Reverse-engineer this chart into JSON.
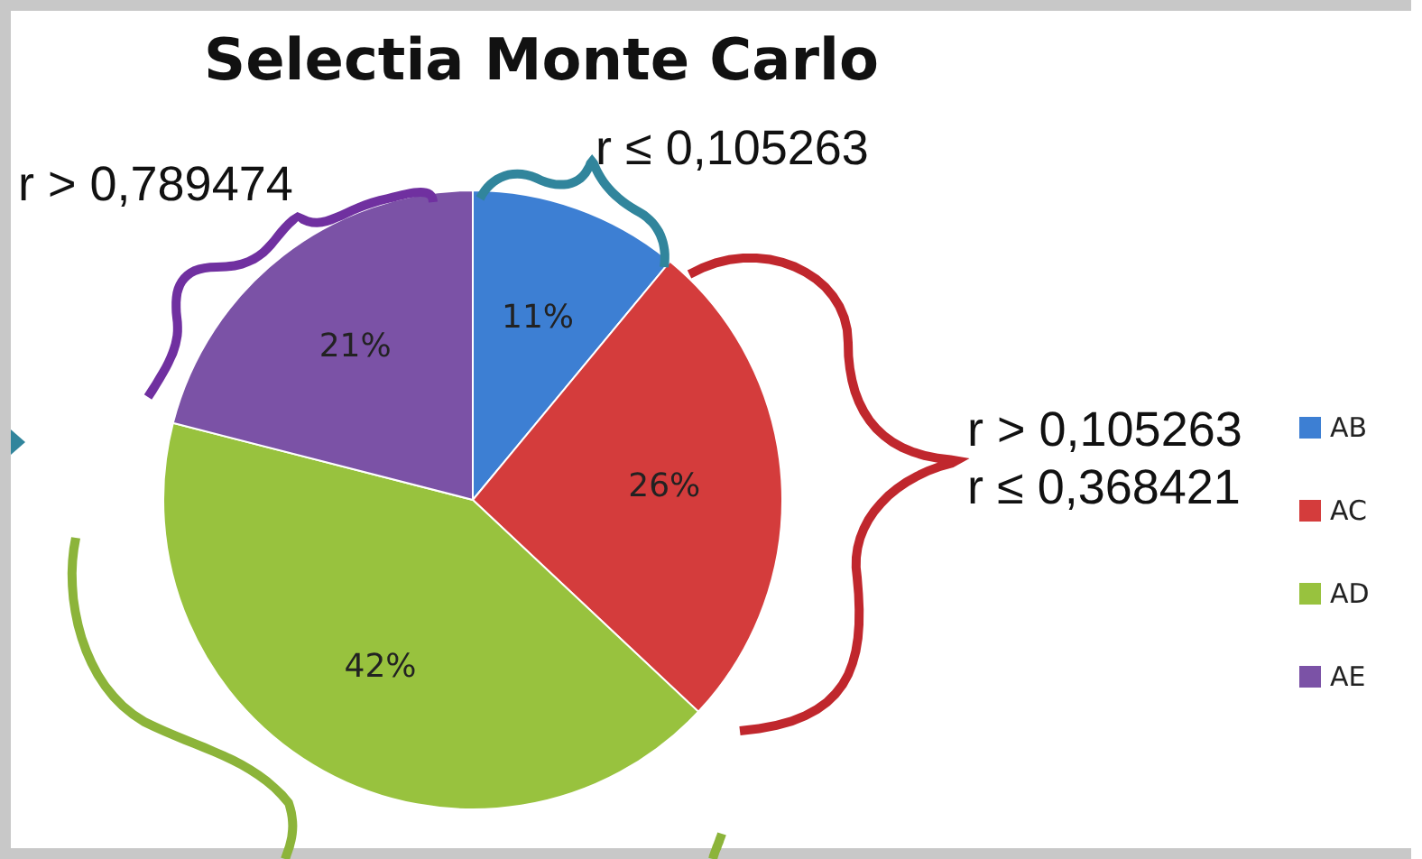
{
  "chart_data": {
    "type": "pie",
    "title": "Selectia Monte Carlo",
    "categories": [
      "AB",
      "AC",
      "AD",
      "AE"
    ],
    "values": [
      11,
      26,
      42,
      21
    ],
    "colors": [
      "#3d7fd3",
      "#d43c3c",
      "#98c23e",
      "#7b52a6"
    ],
    "value_labels": [
      "11%",
      "26%",
      "42%",
      "21%"
    ],
    "legend": "right",
    "annotations": [
      "r > 0,789474",
      "r ≤ 0,105263",
      "r > 0,105263\nr ≤ 0,368421"
    ]
  }
}
